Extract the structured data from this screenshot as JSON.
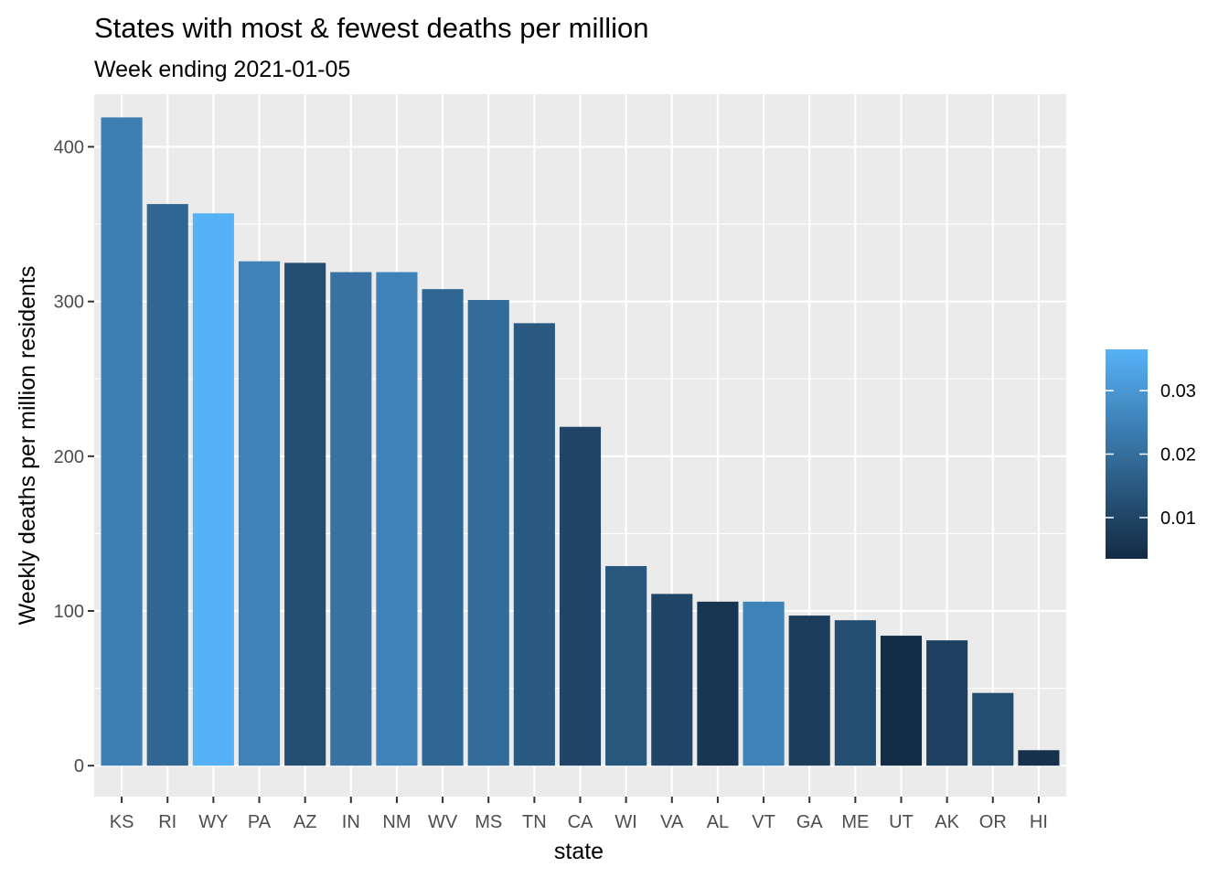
{
  "chart_data": {
    "type": "bar",
    "title": "States with most & fewest deaths per million",
    "subtitle": "Week ending 2021-01-05",
    "xlabel": "state",
    "ylabel": "Weekly deaths per million residents",
    "ylim": [
      -20,
      434
    ],
    "y_ticks": [
      0,
      100,
      200,
      300,
      400
    ],
    "y_tick_labels": [
      "0",
      "100",
      "200",
      "300",
      "400"
    ],
    "grid": true,
    "panel_background": "#ebebeb",
    "grid_color": "#ffffff",
    "categories": [
      "KS",
      "RI",
      "WY",
      "PA",
      "AZ",
      "IN",
      "NM",
      "WV",
      "MS",
      "TN",
      "CA",
      "WI",
      "VA",
      "AL",
      "VT",
      "GA",
      "ME",
      "UT",
      "AK",
      "OR",
      "HI"
    ],
    "values": [
      419,
      363,
      357,
      326,
      325,
      319,
      319,
      308,
      301,
      286,
      219,
      129,
      111,
      106,
      106,
      97,
      94,
      84,
      81,
      47,
      10
    ],
    "fill_values": [
      0.024,
      0.018,
      0.037,
      0.025,
      0.012,
      0.021,
      0.025,
      0.018,
      0.019,
      0.015,
      0.01,
      0.014,
      0.01,
      0.006,
      0.025,
      0.008,
      0.012,
      0.004,
      0.009,
      0.012,
      0.005
    ],
    "color_scale": {
      "low_value": 0.0035,
      "high_value": 0.0365,
      "low_color": "#132b43",
      "high_color": "#56b1f7"
    },
    "legend": {
      "placement": "right",
      "title": "",
      "ticks": [
        0.01,
        0.02,
        0.03
      ],
      "tick_labels": [
        "0.01",
        "0.02",
        "0.03"
      ]
    }
  }
}
